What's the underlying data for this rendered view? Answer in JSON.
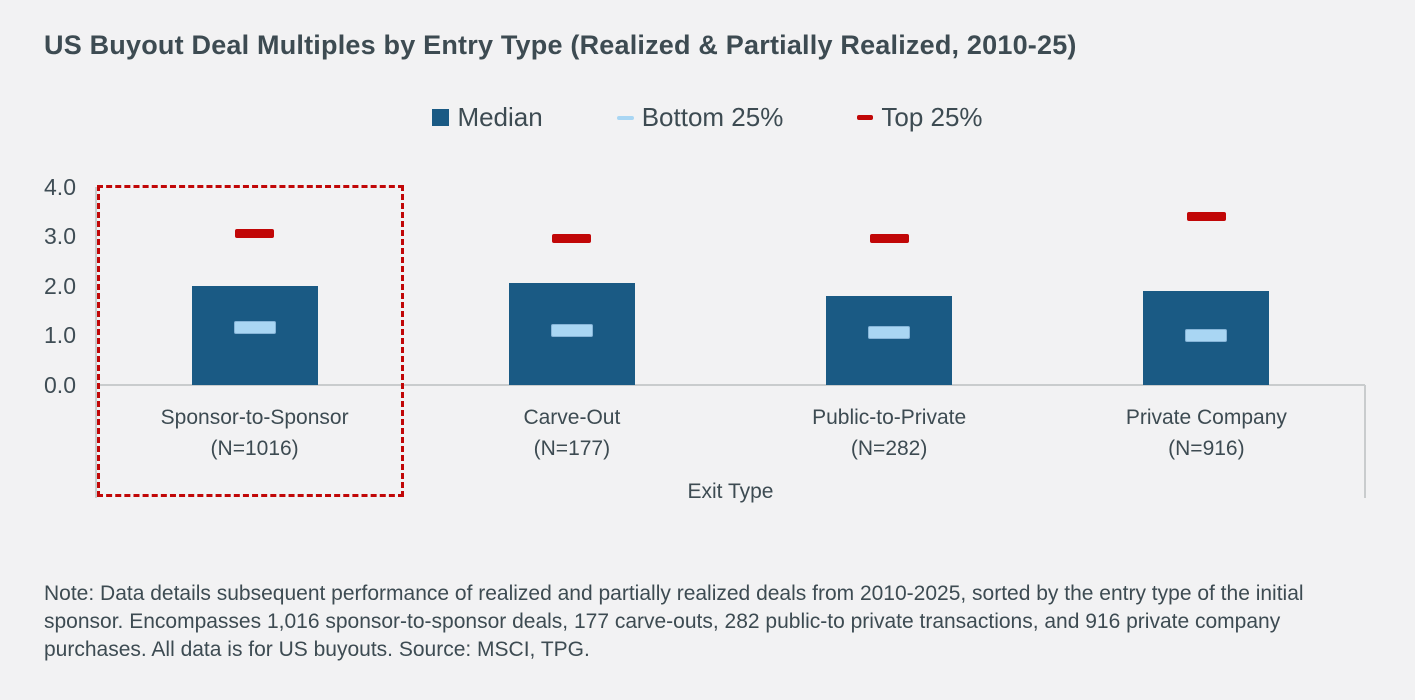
{
  "title": "US Buyout Deal Multiples by Entry Type (Realized & Partially Realized, 2010-25)",
  "colors": {
    "background": "#f2f2f3",
    "text": "#3d4b52",
    "bar_blue": "#1a5a84",
    "light_blue": "#a9d6f3",
    "red": "#c10707",
    "axis_line": "#c9cccd"
  },
  "legend": [
    {
      "label": "Median",
      "marker": "square",
      "color": "#1a5a84"
    },
    {
      "label": "Bottom 25%",
      "marker": "dash",
      "color": "#a9d6f3"
    },
    {
      "label": "Top 25%",
      "marker": "dash",
      "color": "#c10707"
    }
  ],
  "chart_data": {
    "type": "bar",
    "title": "US Buyout Deal Multiples by Entry Type (Realized & Partially Realized, 2010-25)",
    "xlabel": "Exit Type",
    "ylabel": "",
    "ylim": [
      0.0,
      4.0
    ],
    "yticks": [
      "4.0",
      "3.0",
      "2.0",
      "1.0",
      "0.0"
    ],
    "grid": false,
    "legend_position": "top-center",
    "categories": [
      "Sponsor-to-Sponsor",
      "Carve-Out",
      "Public-to-Private",
      "Private Company"
    ],
    "category_counts": [
      "(N=1016)",
      "(N=177)",
      "(N=282)",
      "(N=916)"
    ],
    "series": [
      {
        "name": "Median",
        "style": "bar",
        "color": "#1a5a84",
        "values": [
          2.0,
          2.05,
          1.8,
          1.9
        ]
      },
      {
        "name": "Bottom 25%",
        "style": "dash",
        "color": "#a9d6f3",
        "values": [
          1.15,
          1.1,
          1.05,
          1.0
        ]
      },
      {
        "name": "Top 25%",
        "style": "dash",
        "color": "#c10707",
        "values": [
          3.05,
          2.95,
          2.95,
          3.4
        ]
      }
    ],
    "annotation": {
      "type": "dashed-rectangle",
      "color": "#c10707",
      "highlights": "Sponsor-to-Sponsor"
    }
  },
  "note": "Note: Data details subsequent performance of realized and partially realized deals from 2010-2025, sorted by the entry type of the initial sponsor. Encompasses 1,016 sponsor-to-sponsor deals, 177 carve-outs, 282 public-to private transactions, and 916 private company purchases. All data is for US buyouts. Source: MSCI, TPG."
}
